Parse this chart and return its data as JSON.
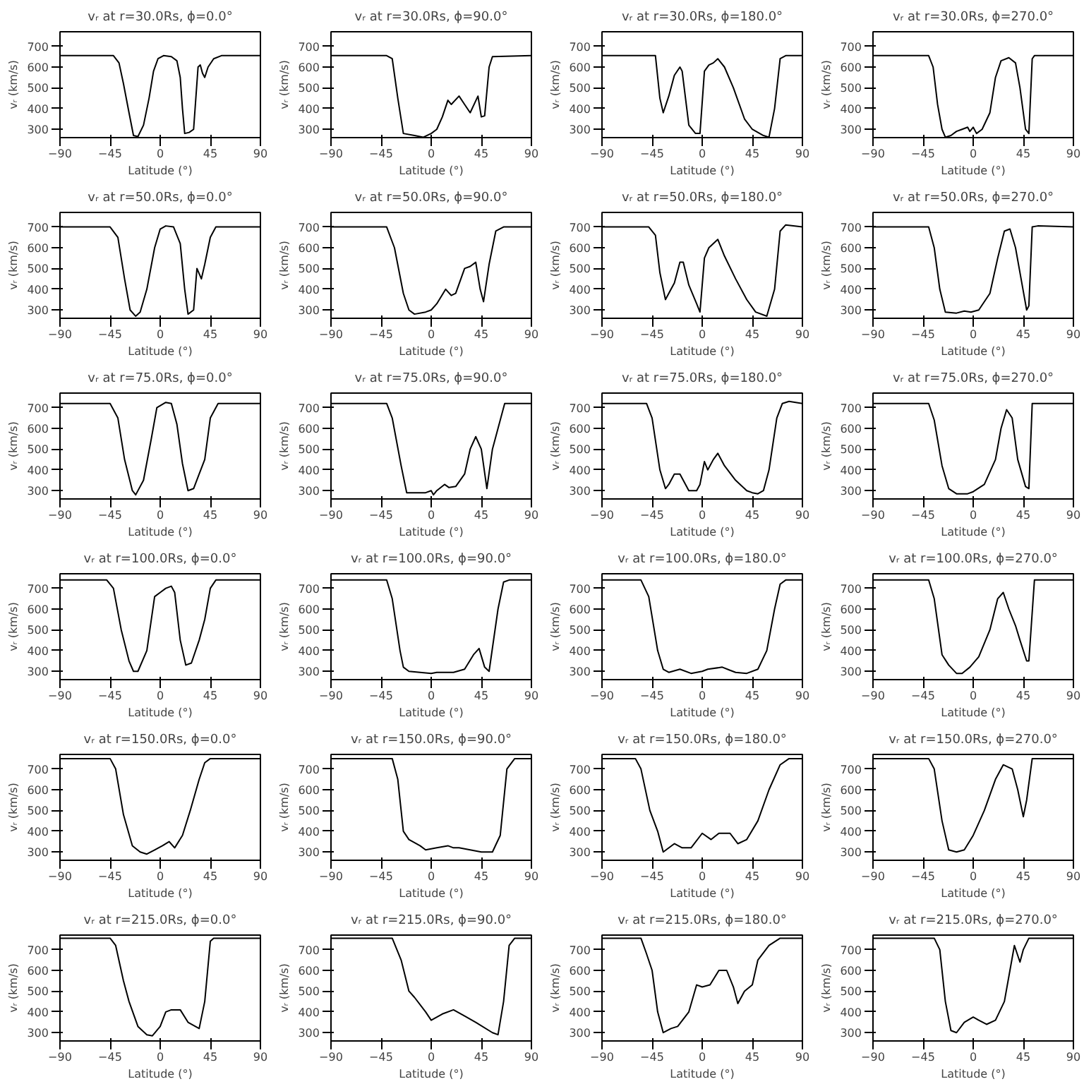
{
  "chart_data": [
    {
      "type": "line",
      "title": "vᵣ at r=30.0Rs, ϕ=0.0°",
      "xlabel": "Latitude (°)",
      "ylabel": "vᵣ (km/s)",
      "color": "#000000",
      "xlim": [
        -90,
        90
      ],
      "ylim": [
        260,
        770
      ],
      "xticks": [
        -90,
        -45,
        0,
        45,
        90
      ],
      "yticks": [
        300,
        400,
        500,
        600,
        700
      ],
      "x": [
        -90,
        -42,
        -37,
        -33,
        -28,
        -24,
        -20,
        -15,
        -10,
        -6,
        -2,
        3,
        10,
        15,
        18,
        20,
        22,
        26,
        30,
        32,
        34,
        36,
        38,
        40,
        43,
        48,
        55,
        90
      ],
      "values": [
        655,
        655,
        620,
        520,
        380,
        270,
        265,
        320,
        450,
        580,
        640,
        655,
        650,
        630,
        550,
        400,
        280,
        285,
        300,
        450,
        600,
        610,
        570,
        550,
        600,
        640,
        655,
        655
      ]
    },
    {
      "type": "line",
      "title": "vᵣ at r=30.0Rs, ϕ=90.0°",
      "xlabel": "Latitude (°)",
      "ylabel": "vᵣ (km/s)",
      "color": "#000000",
      "xlim": [
        -90,
        90
      ],
      "ylim": [
        260,
        770
      ],
      "xticks": [
        -90,
        -45,
        0,
        45,
        90
      ],
      "yticks": [
        300,
        400,
        500,
        600,
        700
      ],
      "x": [
        -90,
        -40,
        -35,
        -30,
        -25,
        -15,
        -7,
        0,
        5,
        10,
        15,
        18,
        25,
        30,
        35,
        42,
        45,
        48,
        52,
        55,
        90
      ],
      "values": [
        655,
        655,
        640,
        450,
        280,
        270,
        262,
        280,
        300,
        360,
        440,
        420,
        460,
        420,
        380,
        460,
        360,
        365,
        600,
        650,
        655
      ]
    },
    {
      "type": "line",
      "title": "vᵣ at r=30.0Rs, ϕ=180.0°",
      "xlabel": "Latitude (°)",
      "ylabel": "vᵣ (km/s)",
      "color": "#000000",
      "xlim": [
        -90,
        90
      ],
      "ylim": [
        260,
        770
      ],
      "xticks": [
        -90,
        -45,
        0,
        45,
        90
      ],
      "yticks": [
        300,
        400,
        500,
        600,
        700
      ],
      "x": [
        -90,
        -42,
        -38,
        -35,
        -30,
        -25,
        -20,
        -18,
        -12,
        -6,
        -2,
        2,
        6,
        10,
        14,
        20,
        28,
        38,
        45,
        55,
        60,
        65,
        70,
        75,
        90
      ],
      "values": [
        655,
        655,
        450,
        380,
        460,
        560,
        600,
        580,
        320,
        280,
        280,
        580,
        610,
        620,
        640,
        600,
        500,
        350,
        300,
        270,
        262,
        400,
        640,
        655,
        655
      ]
    },
    {
      "type": "line",
      "title": "vᵣ at r=30.0Rs, ϕ=270.0°",
      "xlabel": "Latitude (°)",
      "ylabel": "vᵣ (km/s)",
      "color": "#000000",
      "xlim": [
        -90,
        90
      ],
      "ylim": [
        260,
        770
      ],
      "xticks": [
        -90,
        -45,
        0,
        45,
        90
      ],
      "yticks": [
        300,
        400,
        500,
        600,
        700
      ],
      "x": [
        -90,
        -40,
        -36,
        -32,
        -28,
        -25,
        -20,
        -15,
        -10,
        -5,
        -3,
        0,
        3,
        8,
        15,
        20,
        25,
        32,
        38,
        42,
        47,
        50,
        53,
        55,
        90
      ],
      "values": [
        655,
        655,
        600,
        420,
        300,
        262,
        270,
        290,
        300,
        310,
        290,
        310,
        280,
        300,
        380,
        550,
        630,
        645,
        620,
        500,
        300,
        280,
        640,
        655,
        655
      ]
    },
    {
      "type": "line",
      "title": "vᵣ at r=50.0Rs, ϕ=0.0°",
      "xlabel": "Latitude (°)",
      "ylabel": "vᵣ (km/s)",
      "color": "#000000",
      "xlim": [
        -90,
        90
      ],
      "ylim": [
        260,
        770
      ],
      "xticks": [
        -90,
        -45,
        0,
        45,
        90
      ],
      "yticks": [
        300,
        400,
        500,
        600,
        700
      ],
      "x": [
        -90,
        -45,
        -38,
        -32,
        -27,
        -22,
        -18,
        -12,
        -5,
        0,
        5,
        12,
        18,
        22,
        25,
        30,
        33,
        37,
        40,
        45,
        50,
        90
      ],
      "values": [
        700,
        700,
        650,
        450,
        300,
        270,
        290,
        400,
        600,
        690,
        705,
        700,
        620,
        400,
        280,
        300,
        500,
        450,
        520,
        650,
        700,
        700
      ]
    },
    {
      "type": "line",
      "title": "vᵣ at r=50.0Rs, ϕ=90.0°",
      "xlabel": "Latitude (°)",
      "ylabel": "vᵣ (km/s)",
      "color": "#000000",
      "xlim": [
        -90,
        90
      ],
      "ylim": [
        260,
        770
      ],
      "xticks": [
        -90,
        -45,
        0,
        45,
        90
      ],
      "yticks": [
        300,
        400,
        500,
        600,
        700
      ],
      "x": [
        -90,
        -40,
        -33,
        -25,
        -20,
        -15,
        -5,
        0,
        5,
        13,
        18,
        22,
        30,
        35,
        40,
        44,
        47,
        52,
        58,
        65,
        90
      ],
      "values": [
        700,
        700,
        600,
        380,
        300,
        280,
        290,
        300,
        330,
        400,
        370,
        380,
        500,
        510,
        530,
        400,
        340,
        520,
        680,
        700,
        700
      ]
    },
    {
      "type": "line",
      "title": "vᵣ at r=50.0Rs, ϕ=180.0°",
      "xlabel": "Latitude (°)",
      "ylabel": "vᵣ (km/s)",
      "color": "#000000",
      "xlim": [
        -90,
        90
      ],
      "ylim": [
        260,
        770
      ],
      "xticks": [
        -90,
        -45,
        0,
        45,
        90
      ],
      "yticks": [
        300,
        400,
        500,
        600,
        700
      ],
      "x": [
        -90,
        -48,
        -42,
        -38,
        -33,
        -28,
        -25,
        -20,
        -17,
        -12,
        -5,
        -2,
        2,
        6,
        14,
        20,
        30,
        40,
        48,
        58,
        65,
        70,
        75,
        90
      ],
      "values": [
        700,
        700,
        660,
        480,
        350,
        400,
        430,
        530,
        530,
        420,
        330,
        290,
        550,
        600,
        640,
        560,
        450,
        350,
        290,
        270,
        400,
        680,
        710,
        700
      ]
    },
    {
      "type": "line",
      "title": "vᵣ at r=50.0Rs, ϕ=270.0°",
      "xlabel": "Latitude (°)",
      "ylabel": "vᵣ (km/s)",
      "color": "#000000",
      "xlim": [
        -90,
        90
      ],
      "ylim": [
        260,
        770
      ],
      "xticks": [
        -90,
        -45,
        0,
        45,
        90
      ],
      "yticks": [
        300,
        400,
        500,
        600,
        700
      ],
      "x": [
        -90,
        -40,
        -35,
        -30,
        -25,
        -15,
        -8,
        -2,
        5,
        15,
        22,
        28,
        33,
        38,
        43,
        48,
        50,
        53,
        58,
        90
      ],
      "values": [
        700,
        700,
        600,
        400,
        290,
        285,
        295,
        290,
        300,
        380,
        550,
        680,
        690,
        600,
        450,
        300,
        320,
        700,
        705,
        700
      ]
    },
    {
      "type": "line",
      "title": "vᵣ at r=75.0Rs, ϕ=0.0°",
      "xlabel": "Latitude (°)",
      "ylabel": "vᵣ (km/s)",
      "color": "#000000",
      "xlim": [
        -90,
        90
      ],
      "ylim": [
        260,
        770
      ],
      "xticks": [
        -90,
        -45,
        0,
        45,
        90
      ],
      "yticks": [
        300,
        400,
        500,
        600,
        700
      ],
      "x": [
        -90,
        -45,
        -38,
        -32,
        -25,
        -22,
        -15,
        -8,
        -3,
        5,
        10,
        15,
        20,
        25,
        30,
        35,
        40,
        45,
        52,
        90
      ],
      "values": [
        720,
        720,
        650,
        450,
        300,
        280,
        350,
        550,
        700,
        725,
        720,
        620,
        430,
        300,
        310,
        380,
        450,
        650,
        720,
        720
      ]
    },
    {
      "type": "line",
      "title": "vᵣ at r=75.0Rs, ϕ=90.0°",
      "xlabel": "Latitude (°)",
      "ylabel": "vᵣ (km/s)",
      "color": "#000000",
      "xlim": [
        -90,
        90
      ],
      "ylim": [
        260,
        770
      ],
      "xticks": [
        -90,
        -45,
        0,
        45,
        90
      ],
      "yticks": [
        300,
        400,
        500,
        600,
        700
      ],
      "x": [
        -90,
        -40,
        -35,
        -27,
        -22,
        -5,
        0,
        2,
        5,
        12,
        16,
        22,
        30,
        35,
        40,
        45,
        50,
        55,
        62,
        66,
        90
      ],
      "values": [
        720,
        720,
        650,
        420,
        290,
        290,
        300,
        280,
        300,
        330,
        315,
        320,
        380,
        500,
        560,
        500,
        310,
        500,
        640,
        720,
        720
      ]
    },
    {
      "type": "line",
      "title": "vᵣ at r=75.0Rs, ϕ=180.0°",
      "xlabel": "Latitude (°)",
      "ylabel": "vᵣ (km/s)",
      "color": "#000000",
      "xlim": [
        -90,
        90
      ],
      "ylim": [
        260,
        770
      ],
      "xticks": [
        -90,
        -45,
        0,
        45,
        90
      ],
      "yticks": [
        300,
        400,
        500,
        600,
        700
      ],
      "x": [
        -90,
        -50,
        -45,
        -38,
        -33,
        -30,
        -25,
        -20,
        -12,
        -5,
        -2,
        2,
        5,
        10,
        14,
        20,
        30,
        40,
        45,
        50,
        55,
        60,
        67,
        72,
        78,
        90
      ],
      "values": [
        720,
        720,
        650,
        400,
        310,
        330,
        380,
        380,
        300,
        300,
        330,
        440,
        400,
        450,
        480,
        420,
        350,
        300,
        290,
        285,
        300,
        400,
        650,
        720,
        730,
        720
      ]
    },
    {
      "type": "line",
      "title": "vᵣ at r=75.0Rs, ϕ=270.0°",
      "xlabel": "Latitude (°)",
      "ylabel": "vᵣ (km/s)",
      "color": "#000000",
      "xlim": [
        -90,
        90
      ],
      "ylim": [
        260,
        770
      ],
      "xticks": [
        -90,
        -45,
        0,
        45,
        90
      ],
      "yticks": [
        300,
        400,
        500,
        600,
        700
      ],
      "x": [
        -90,
        -40,
        -35,
        -28,
        -22,
        -15,
        -5,
        0,
        10,
        20,
        25,
        30,
        35,
        40,
        47,
        50,
        53,
        90
      ],
      "values": [
        720,
        720,
        640,
        420,
        310,
        285,
        285,
        295,
        330,
        450,
        600,
        690,
        650,
        450,
        320,
        310,
        720,
        720
      ]
    },
    {
      "type": "line",
      "title": "vᵣ at r=100.0Rs, ϕ=0.0°",
      "xlabel": "Latitude (°)",
      "ylabel": "vᵣ (km/s)",
      "color": "#000000",
      "xlim": [
        -90,
        90
      ],
      "ylim": [
        260,
        770
      ],
      "xticks": [
        -90,
        -45,
        0,
        45,
        90
      ],
      "yticks": [
        300,
        400,
        500,
        600,
        700
      ],
      "x": [
        -90,
        -48,
        -42,
        -35,
        -28,
        -24,
        -20,
        -12,
        -5,
        0,
        5,
        10,
        13,
        18,
        23,
        28,
        35,
        40,
        45,
        50,
        90
      ],
      "values": [
        740,
        740,
        700,
        500,
        350,
        300,
        300,
        400,
        660,
        680,
        700,
        710,
        680,
        450,
        330,
        340,
        450,
        550,
        700,
        740,
        740
      ]
    },
    {
      "type": "line",
      "title": "vᵣ at r=100.0Rs, ϕ=90.0°",
      "xlabel": "Latitude (°)",
      "ylabel": "vᵣ (km/s)",
      "color": "#000000",
      "xlim": [
        -90,
        90
      ],
      "ylim": [
        260,
        770
      ],
      "xticks": [
        -90,
        -45,
        0,
        45,
        90
      ],
      "yticks": [
        300,
        400,
        500,
        600,
        700
      ],
      "x": [
        -90,
        -40,
        -35,
        -28,
        -25,
        -20,
        -10,
        0,
        5,
        20,
        30,
        38,
        43,
        48,
        52,
        60,
        65,
        70,
        90
      ],
      "values": [
        740,
        740,
        650,
        400,
        320,
        300,
        295,
        290,
        295,
        295,
        310,
        380,
        410,
        320,
        300,
        600,
        730,
        740,
        740
      ]
    },
    {
      "type": "line",
      "title": "vᵣ at r=100.0Rs, ϕ=180.0°",
      "xlabel": "Latitude (°)",
      "ylabel": "vᵣ (km/s)",
      "color": "#000000",
      "xlim": [
        -90,
        90
      ],
      "ylim": [
        260,
        770
      ],
      "xticks": [
        -90,
        -45,
        0,
        45,
        90
      ],
      "yticks": [
        300,
        400,
        500,
        600,
        700
      ],
      "x": [
        -90,
        -55,
        -48,
        -40,
        -35,
        -30,
        -20,
        -10,
        0,
        5,
        18,
        25,
        30,
        40,
        50,
        58,
        65,
        70,
        75,
        90
      ],
      "values": [
        740,
        740,
        660,
        400,
        310,
        295,
        310,
        290,
        300,
        310,
        320,
        305,
        295,
        290,
        310,
        400,
        600,
        720,
        740,
        740
      ]
    },
    {
      "type": "line",
      "title": "vᵣ at r=100.0Rs, ϕ=270.0°",
      "xlabel": "Latitude (°)",
      "ylabel": "vᵣ (km/s)",
      "color": "#000000",
      "xlim": [
        -90,
        90
      ],
      "ylim": [
        260,
        770
      ],
      "xticks": [
        -90,
        -45,
        0,
        45,
        90
      ],
      "yticks": [
        300,
        400,
        500,
        600,
        700
      ],
      "x": [
        -90,
        -40,
        -35,
        -28,
        -22,
        -15,
        -10,
        -3,
        5,
        15,
        22,
        27,
        32,
        38,
        42,
        48,
        50,
        55,
        90
      ],
      "values": [
        740,
        740,
        650,
        380,
        330,
        290,
        290,
        320,
        370,
        500,
        650,
        680,
        600,
        520,
        450,
        350,
        350,
        740,
        740
      ]
    },
    {
      "type": "line",
      "title": "vᵣ at r=150.0Rs, ϕ=0.0°",
      "xlabel": "Latitude (°)",
      "ylabel": "vᵣ (km/s)",
      "color": "#000000",
      "xlim": [
        -90,
        90
      ],
      "ylim": [
        260,
        770
      ],
      "xticks": [
        -90,
        -45,
        0,
        45,
        90
      ],
      "yticks": [
        300,
        400,
        500,
        600,
        700
      ],
      "x": [
        -90,
        -45,
        -40,
        -33,
        -25,
        -18,
        -12,
        -5,
        2,
        8,
        13,
        20,
        27,
        35,
        40,
        45,
        90
      ],
      "values": [
        750,
        750,
        700,
        480,
        330,
        300,
        290,
        310,
        330,
        350,
        320,
        380,
        500,
        650,
        730,
        750,
        750
      ]
    },
    {
      "type": "line",
      "title": "vᵣ at r=150.0Rs, ϕ=90.0°",
      "xlabel": "Latitude (°)",
      "ylabel": "vᵣ (km/s)",
      "color": "#000000",
      "xlim": [
        -90,
        90
      ],
      "ylim": [
        260,
        770
      ],
      "xticks": [
        -90,
        -45,
        0,
        45,
        90
      ],
      "yticks": [
        300,
        400,
        500,
        600,
        700
      ],
      "x": [
        -90,
        -35,
        -30,
        -25,
        -20,
        -10,
        -5,
        5,
        15,
        20,
        25,
        35,
        45,
        55,
        62,
        68,
        75,
        90
      ],
      "values": [
        750,
        750,
        650,
        400,
        360,
        330,
        310,
        320,
        330,
        320,
        320,
        310,
        300,
        300,
        380,
        700,
        750,
        750
      ]
    },
    {
      "type": "line",
      "title": "vᵣ at r=150.0Rs, ϕ=180.0°",
      "xlabel": "Latitude (°)",
      "ylabel": "vᵣ (km/s)",
      "color": "#000000",
      "xlim": [
        -90,
        90
      ],
      "ylim": [
        260,
        770
      ],
      "xticks": [
        -90,
        -45,
        0,
        45,
        90
      ],
      "yticks": [
        300,
        400,
        500,
        600,
        700
      ],
      "x": [
        -90,
        -60,
        -55,
        -47,
        -40,
        -35,
        -25,
        -18,
        -10,
        0,
        8,
        15,
        25,
        32,
        40,
        50,
        60,
        70,
        78,
        90
      ],
      "values": [
        750,
        750,
        700,
        500,
        400,
        300,
        340,
        320,
        320,
        390,
        360,
        390,
        390,
        340,
        360,
        450,
        600,
        720,
        750,
        750
      ]
    },
    {
      "type": "line",
      "title": "vᵣ at r=150.0Rs, ϕ=270.0°",
      "xlabel": "Latitude (°)",
      "ylabel": "vᵣ (km/s)",
      "color": "#000000",
      "xlim": [
        -90,
        90
      ],
      "ylim": [
        260,
        770
      ],
      "xticks": [
        -90,
        -45,
        0,
        45,
        90
      ],
      "yticks": [
        300,
        400,
        500,
        600,
        700
      ],
      "x": [
        -90,
        -40,
        -35,
        -28,
        -22,
        -15,
        -8,
        0,
        10,
        20,
        27,
        35,
        40,
        45,
        48,
        53,
        90
      ],
      "values": [
        750,
        750,
        700,
        450,
        310,
        300,
        310,
        380,
        500,
        650,
        720,
        700,
        600,
        470,
        550,
        750,
        750
      ]
    },
    {
      "type": "line",
      "title": "vᵣ at r=215.0Rs, ϕ=0.0°",
      "xlabel": "Latitude (°)",
      "ylabel": "vᵣ (km/s)",
      "color": "#000000",
      "xlim": [
        -90,
        90
      ],
      "ylim": [
        260,
        770
      ],
      "xticks": [
        -90,
        -45,
        0,
        45,
        90
      ],
      "yticks": [
        300,
        400,
        500,
        600,
        700
      ],
      "x": [
        -90,
        -45,
        -40,
        -33,
        -28,
        -20,
        -12,
        -7,
        0,
        5,
        10,
        18,
        25,
        35,
        40,
        45,
        48,
        90
      ],
      "values": [
        755,
        755,
        720,
        550,
        450,
        330,
        290,
        285,
        330,
        400,
        410,
        410,
        350,
        320,
        450,
        740,
        755,
        755
      ]
    },
    {
      "type": "line",
      "title": "vᵣ at r=215.0Rs, ϕ=90.0°",
      "xlabel": "Latitude (°)",
      "ylabel": "vᵣ (km/s)",
      "color": "#000000",
      "xlim": [
        -90,
        90
      ],
      "ylim": [
        260,
        770
      ],
      "xticks": [
        -90,
        -45,
        0,
        45,
        90
      ],
      "yticks": [
        300,
        400,
        500,
        600,
        700
      ],
      "x": [
        -90,
        -35,
        -27,
        -20,
        -15,
        -5,
        0,
        10,
        20,
        30,
        40,
        55,
        60,
        65,
        70,
        75,
        90
      ],
      "values": [
        755,
        755,
        650,
        500,
        470,
        400,
        360,
        390,
        410,
        380,
        350,
        300,
        290,
        450,
        720,
        755,
        755
      ]
    },
    {
      "type": "line",
      "title": "vᵣ at r=215.0Rs, ϕ=180.0°",
      "xlabel": "Latitude (°)",
      "ylabel": "vᵣ (km/s)",
      "color": "#000000",
      "xlim": [
        -90,
        90
      ],
      "ylim": [
        260,
        770
      ],
      "xticks": [
        -90,
        -45,
        0,
        45,
        90
      ],
      "yticks": [
        300,
        400,
        500,
        600,
        700
      ],
      "x": [
        -90,
        -55,
        -50,
        -45,
        -40,
        -35,
        -28,
        -22,
        -12,
        -5,
        0,
        7,
        15,
        22,
        28,
        32,
        38,
        45,
        50,
        60,
        70,
        90
      ],
      "values": [
        755,
        755,
        680,
        600,
        400,
        300,
        320,
        330,
        400,
        530,
        520,
        530,
        600,
        600,
        520,
        440,
        500,
        530,
        650,
        720,
        755,
        755
      ]
    },
    {
      "type": "line",
      "title": "vᵣ at r=215.0Rs, ϕ=270.0°",
      "xlabel": "Latitude (°)",
      "ylabel": "vᵣ (km/s)",
      "color": "#000000",
      "xlim": [
        -90,
        90
      ],
      "ylim": [
        260,
        770
      ],
      "xticks": [
        -90,
        -45,
        0,
        45,
        90
      ],
      "yticks": [
        300,
        400,
        500,
        600,
        700
      ],
      "x": [
        -90,
        -35,
        -30,
        -25,
        -20,
        -15,
        -8,
        0,
        5,
        12,
        20,
        28,
        33,
        37,
        42,
        45,
        50,
        90
      ],
      "values": [
        755,
        755,
        700,
        450,
        310,
        300,
        350,
        375,
        360,
        340,
        360,
        450,
        600,
        720,
        640,
        700,
        755,
        755
      ]
    }
  ]
}
